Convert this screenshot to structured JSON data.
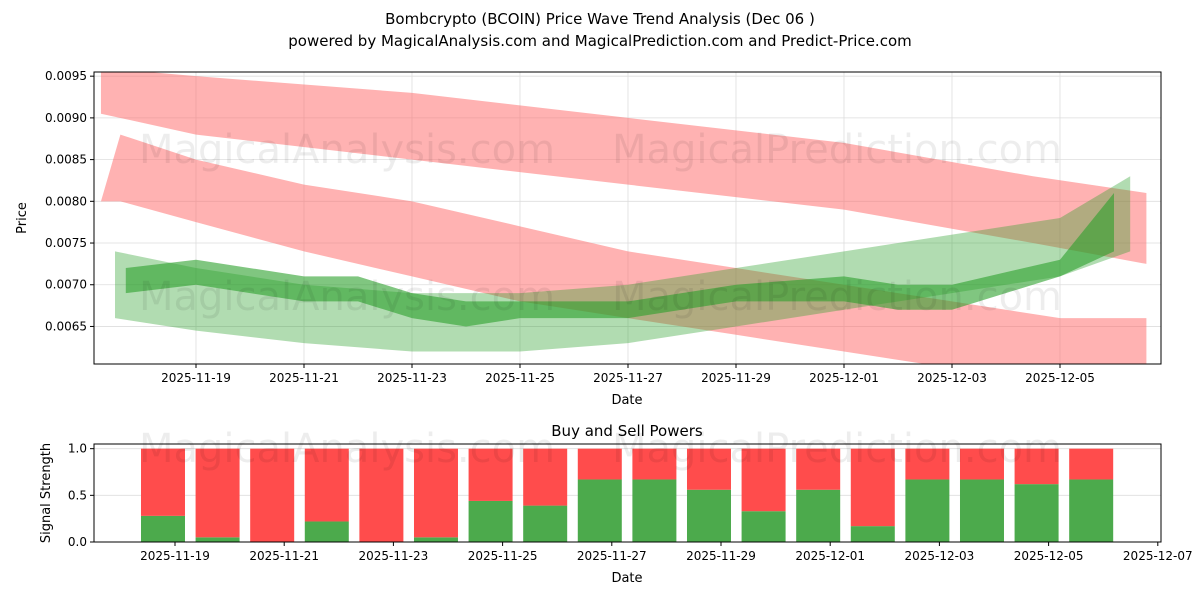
{
  "chart_data": [
    {
      "type": "area",
      "title": "Bombcrypto (BCOIN) Price Wave Trend Analysis (Dec 06 )",
      "subtitle": "powered by MagicalAnalysis.com and MagicalPrediction.com and Predict-Price.com",
      "xlabel": "Date",
      "ylabel": "Price",
      "x_reference_date": "2025-11-19",
      "xticks": [
        "2025-11-19",
        "2025-11-21",
        "2025-11-23",
        "2025-11-25",
        "2025-11-27",
        "2025-11-29",
        "2025-12-01",
        "2025-12-03",
        "2025-12-05"
      ],
      "yticks": [
        "0.0065",
        "0.0070",
        "0.0075",
        "0.0080",
        "0.0085",
        "0.0090",
        "0.0095"
      ],
      "ylim": [
        0.00605,
        0.00955
      ],
      "xlim_days": [
        -1.9,
        17.9
      ],
      "grid": true,
      "bands": [
        {
          "name": "red-upper-band",
          "color": "#ff6666",
          "opacity": 0.5,
          "x_days": [
            -1.76,
            0,
            4,
            8,
            12,
            15.5,
            17.6
          ],
          "upper": [
            0.0096,
            0.0095,
            0.0093,
            0.009,
            0.0087,
            0.0083,
            0.0081
          ],
          "lower": [
            0.00905,
            0.0088,
            0.0085,
            0.0082,
            0.0079,
            0.0075,
            0.00725
          ]
        },
        {
          "name": "red-lower-band",
          "color": "#ff6666",
          "opacity": 0.5,
          "x_days": [
            -1.76,
            -1.4,
            0,
            2,
            4,
            6,
            8,
            10,
            12,
            14,
            16,
            17.6
          ],
          "upper": [
            0.008,
            0.0088,
            0.0085,
            0.0082,
            0.008,
            0.0077,
            0.0074,
            0.0072,
            0.007,
            0.0068,
            0.0066,
            0.0066
          ],
          "lower": [
            0.008,
            0.008,
            0.00775,
            0.0074,
            0.0071,
            0.0068,
            0.0066,
            0.0064,
            0.0062,
            0.006,
            0.0058,
            0.0058
          ]
        },
        {
          "name": "green-wide-band",
          "color": "#2ca02c",
          "opacity": 0.37,
          "x_days": [
            -1.5,
            0,
            2,
            4,
            6,
            8,
            10,
            12,
            14,
            16,
            17.3
          ],
          "upper": [
            0.0074,
            0.0072,
            0.007,
            0.0069,
            0.0069,
            0.007,
            0.0072,
            0.0074,
            0.0076,
            0.0078,
            0.0083
          ],
          "lower": [
            0.0066,
            0.00645,
            0.0063,
            0.0062,
            0.0062,
            0.0063,
            0.0065,
            0.0067,
            0.0069,
            0.0071,
            0.0074
          ]
        },
        {
          "name": "green-trend-band",
          "color": "#2ca02c",
          "opacity": 0.6,
          "x_days": [
            -1.3,
            0,
            2,
            3,
            4,
            5,
            6,
            8,
            10,
            12,
            13,
            14,
            16,
            17
          ],
          "upper": [
            0.0072,
            0.0073,
            0.0071,
            0.0071,
            0.0069,
            0.0068,
            0.0068,
            0.0068,
            0.007,
            0.0071,
            0.007,
            0.007,
            0.0073,
            0.0081
          ],
          "lower": [
            0.0069,
            0.007,
            0.0068,
            0.0068,
            0.0066,
            0.0065,
            0.0066,
            0.0066,
            0.0068,
            0.0068,
            0.0067,
            0.0067,
            0.0071,
            0.0074
          ]
        }
      ],
      "watermarks": [
        "MagicalAnalysis.com",
        "MagicalPrediction.com"
      ]
    },
    {
      "type": "bar",
      "title": "Buy and Sell Powers",
      "xlabel": "Date",
      "ylabel": "Signal Strength",
      "xticks": [
        "2025-11-19",
        "2025-11-21",
        "2025-11-23",
        "2025-11-25",
        "2025-11-27",
        "2025-11-29",
        "2025-12-01",
        "2025-12-03",
        "2025-12-05",
        "2025-12-07"
      ],
      "yticks": [
        "0.0",
        "0.5",
        "1.0"
      ],
      "ylim": [
        0,
        1.05
      ],
      "categories": [
        "2025-11-19",
        "2025-11-20",
        "2025-11-21",
        "2025-11-22",
        "2025-11-23",
        "2025-11-24",
        "2025-11-25",
        "2025-11-26",
        "2025-11-27",
        "2025-11-28",
        "2025-11-29",
        "2025-11-30",
        "2025-12-01",
        "2025-12-02",
        "2025-12-03",
        "2025-12-04",
        "2025-12-05",
        "2025-12-06"
      ],
      "series": [
        {
          "name": "Buy",
          "color": "#4caa4c",
          "values": [
            0.28,
            0.05,
            0.0,
            0.22,
            0.0,
            0.05,
            0.44,
            0.39,
            0.67,
            0.67,
            0.56,
            0.33,
            0.56,
            0.17,
            0.67,
            0.67,
            0.62,
            0.67
          ]
        },
        {
          "name": "Sell",
          "color": "#ff4c4c",
          "values": [
            0.72,
            0.95,
            1.0,
            0.78,
            1.0,
            0.95,
            0.56,
            0.61,
            0.33,
            0.33,
            0.44,
            0.67,
            0.44,
            0.83,
            0.33,
            0.33,
            0.38,
            0.33
          ]
        }
      ]
    }
  ]
}
